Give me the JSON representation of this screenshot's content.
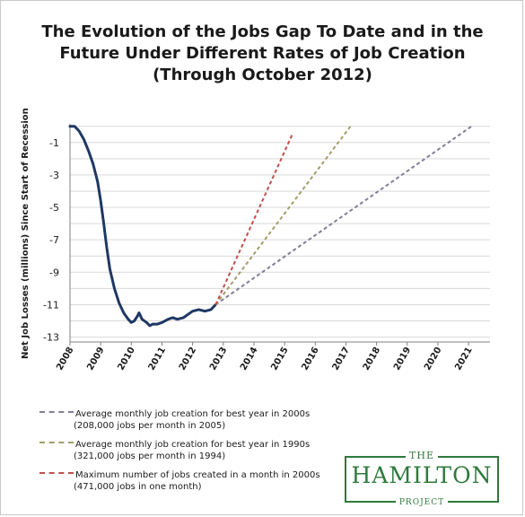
{
  "title_lines": [
    "The Evolution of the Jobs Gap To Date and in the",
    "Future Under Different Rates of Job Creation",
    "(Through October 2012)"
  ],
  "logo": {
    "top": "THE",
    "main": "HAMILTON",
    "bottom": "PROJECT",
    "color": "#2e7a3c"
  },
  "chart_data": {
    "type": "line",
    "title": "The Evolution of the Jobs Gap To Date and in the Future Under Different Rates of Job Creation (Through October 2012)",
    "ylabel": "Net Job Losses (millions) Since Start of Recession",
    "xlabel": "",
    "ylim": [
      -13.3,
      0.15
    ],
    "xlim": [
      2008,
      2021.7
    ],
    "y_ticks": [
      -1,
      -3,
      -5,
      -7,
      -9,
      -11,
      -13
    ],
    "y_tick_labels": [
      "-1",
      "-3",
      "-5",
      "-7",
      "-9",
      "-11",
      "-13"
    ],
    "x_ticks": [
      2008,
      2009,
      2010,
      2011,
      2012,
      2013,
      2014,
      2015,
      2016,
      2017,
      2018,
      2019,
      2020,
      2021
    ],
    "x_tick_labels": [
      "2008",
      "2009",
      "2010",
      "2011",
      "2012",
      "2013",
      "2014",
      "2015",
      "2016",
      "2017",
      "2018",
      "2019",
      "2020",
      "2021"
    ],
    "grid": true,
    "legend_position": "bottom-left",
    "series": [
      {
        "style": "solid",
        "color": "#1f3864",
        "points": [
          [
            2008.0,
            0.0
          ],
          [
            2008.15,
            0.0
          ],
          [
            2008.3,
            -0.3
          ],
          [
            2008.45,
            -0.8
          ],
          [
            2008.6,
            -1.5
          ],
          [
            2008.75,
            -2.3
          ],
          [
            2008.9,
            -3.4
          ],
          [
            2009.0,
            -4.6
          ],
          [
            2009.1,
            -6.0
          ],
          [
            2009.2,
            -7.5
          ],
          [
            2009.3,
            -8.8
          ],
          [
            2009.45,
            -10.0
          ],
          [
            2009.6,
            -10.9
          ],
          [
            2009.75,
            -11.5
          ],
          [
            2009.9,
            -11.9
          ],
          [
            2010.0,
            -12.1
          ],
          [
            2010.1,
            -12.0
          ],
          [
            2010.2,
            -11.7
          ],
          [
            2010.25,
            -11.5
          ],
          [
            2010.35,
            -11.9
          ],
          [
            2010.5,
            -12.1
          ],
          [
            2010.6,
            -12.3
          ],
          [
            2010.7,
            -12.2
          ],
          [
            2010.85,
            -12.2
          ],
          [
            2011.0,
            -12.1
          ],
          [
            2011.2,
            -11.9
          ],
          [
            2011.35,
            -11.8
          ],
          [
            2011.5,
            -11.9
          ],
          [
            2011.7,
            -11.8
          ],
          [
            2011.85,
            -11.6
          ],
          [
            2012.0,
            -11.4
          ],
          [
            2012.2,
            -11.3
          ],
          [
            2012.4,
            -11.4
          ],
          [
            2012.6,
            -11.3
          ],
          [
            2012.75,
            -11.0
          ]
        ]
      },
      {
        "name": "Average monthly job creation for best year in 2000s",
        "description": "(208,000 jobs per month in 2005)",
        "style": "dashed",
        "color": "#7f7f9a",
        "points": [
          [
            2012.75,
            -11.0
          ],
          [
            2021.1,
            0.0
          ]
        ]
      },
      {
        "name": "Average monthly job creation for best year in 1990s",
        "description": "(321,000 jobs per month in 1994)",
        "style": "dashed",
        "color": "#a39e6a",
        "points": [
          [
            2012.75,
            -11.0
          ],
          [
            2017.15,
            0.0
          ]
        ]
      },
      {
        "name": "Maximum number of jobs created in a month in 2000s",
        "description": "(471,000 jobs in one month)",
        "style": "dashed",
        "color": "#c0504d",
        "points": [
          [
            2012.75,
            -11.0
          ],
          [
            2015.25,
            -0.5
          ]
        ]
      }
    ]
  }
}
